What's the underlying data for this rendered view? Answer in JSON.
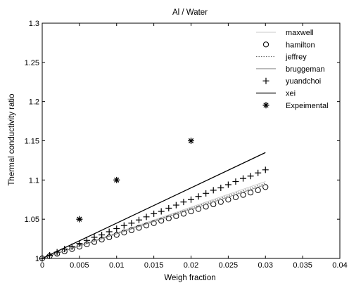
{
  "chart_data": {
    "type": "line",
    "title": "Al / Water",
    "xlabel": "Weigh fraction",
    "ylabel": "Thermal conductivity ratio",
    "xlim": [
      0,
      0.04
    ],
    "ylim": [
      1,
      1.3
    ],
    "xticks": [
      "0",
      "0.005",
      "0.01",
      "0.015",
      "0.02",
      "0.025",
      "0.03",
      "0.035",
      "0.04"
    ],
    "yticks": [
      "1",
      "1.05",
      "1.1",
      "1.15",
      "1.2",
      "1.25",
      "1.3"
    ],
    "grid": false,
    "legend_position": "top-right",
    "series": [
      {
        "name": "maxwell",
        "style": "line",
        "color": "#c8c8c8",
        "x": [
          0,
          0.03
        ],
        "y": [
          1,
          1.098
        ]
      },
      {
        "name": "hamilton",
        "style": "circle",
        "color": "#000000",
        "x": [
          0,
          0.001,
          0.002,
          0.003,
          0.004,
          0.005,
          0.006,
          0.007,
          0.008,
          0.009,
          0.01,
          0.011,
          0.012,
          0.013,
          0.014,
          0.015,
          0.016,
          0.017,
          0.018,
          0.019,
          0.02,
          0.021,
          0.022,
          0.023,
          0.024,
          0.025,
          0.026,
          0.027,
          0.028,
          0.029,
          0.03
        ],
        "y": [
          1.0,
          1.003,
          1.006,
          1.009,
          1.012,
          1.015,
          1.018,
          1.021,
          1.024,
          1.027,
          1.03,
          1.033,
          1.036,
          1.039,
          1.042,
          1.045,
          1.048,
          1.051,
          1.054,
          1.057,
          1.06,
          1.063,
          1.066,
          1.069,
          1.072,
          1.075,
          1.078,
          1.081,
          1.084,
          1.087,
          1.091
        ]
      },
      {
        "name": "jeffrey",
        "style": "dotted",
        "color": "#555555",
        "x": [
          0,
          0.03
        ],
        "y": [
          1,
          1.096
        ]
      },
      {
        "name": "bruggeman",
        "style": "line",
        "color": "#8a8a8a",
        "x": [
          0,
          0.03
        ],
        "y": [
          1,
          1.094
        ]
      },
      {
        "name": "yuandchoi",
        "style": "plus",
        "color": "#000000",
        "x": [
          0,
          0.001,
          0.002,
          0.003,
          0.004,
          0.005,
          0.006,
          0.007,
          0.008,
          0.009,
          0.01,
          0.011,
          0.012,
          0.013,
          0.014,
          0.015,
          0.016,
          0.017,
          0.018,
          0.019,
          0.02,
          0.021,
          0.022,
          0.023,
          0.024,
          0.025,
          0.026,
          0.027,
          0.028,
          0.029,
          0.03
        ],
        "y": [
          1.0,
          1.004,
          1.008,
          1.012,
          1.015,
          1.019,
          1.023,
          1.027,
          1.03,
          1.034,
          1.038,
          1.042,
          1.045,
          1.049,
          1.053,
          1.057,
          1.06,
          1.064,
          1.068,
          1.072,
          1.075,
          1.079,
          1.083,
          1.087,
          1.09,
          1.094,
          1.098,
          1.102,
          1.105,
          1.109,
          1.113
        ]
      },
      {
        "name": "xei",
        "style": "line",
        "color": "#000000",
        "x": [
          0,
          0.03
        ],
        "y": [
          1,
          1.135
        ]
      },
      {
        "name": "Expeimental",
        "style": "star",
        "color": "#000000",
        "x": [
          0.005,
          0.01,
          0.02
        ],
        "y": [
          1.05,
          1.1,
          1.15
        ]
      }
    ]
  }
}
